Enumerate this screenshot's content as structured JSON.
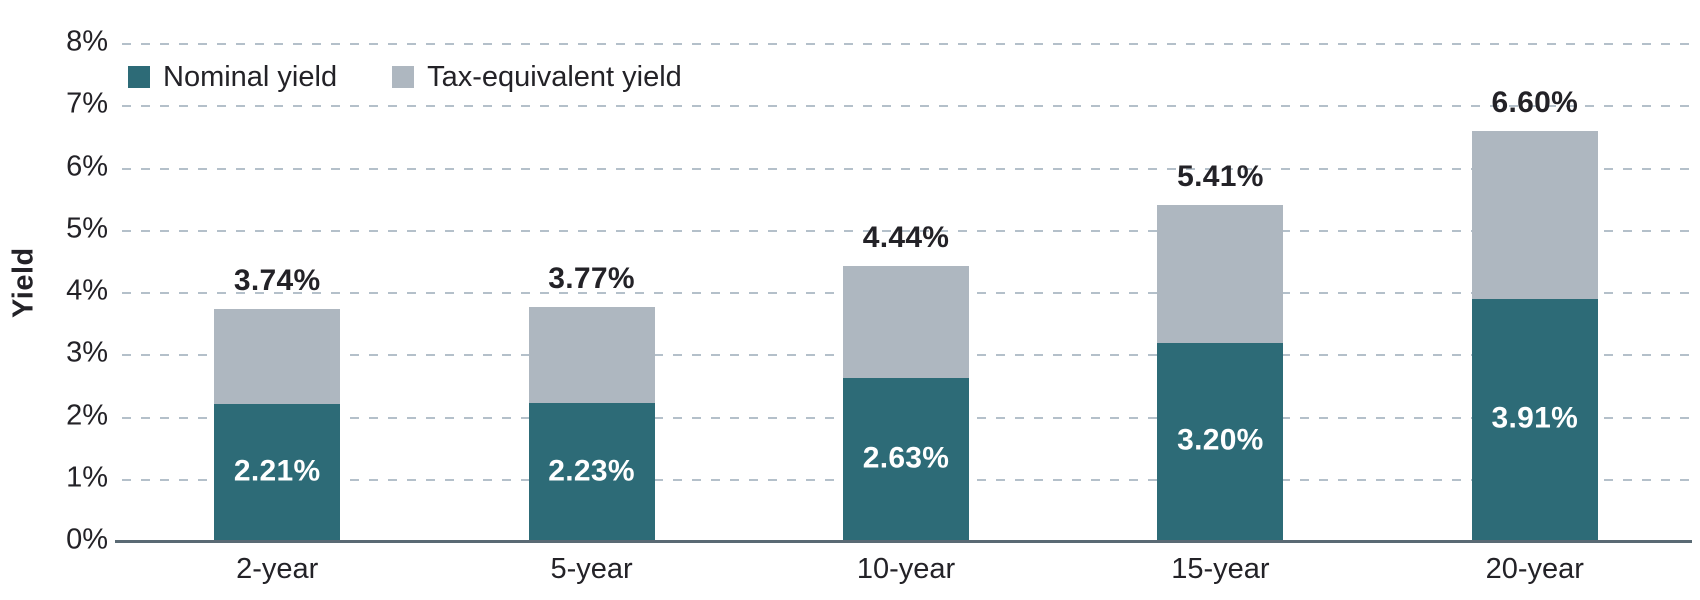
{
  "chart_data": {
    "type": "bar",
    "stacked": true,
    "title": "",
    "xlabel": "",
    "ylabel": "Yield",
    "ylim": [
      0,
      8
    ],
    "ytick_step": 1,
    "ytick_suffix": "%",
    "grid": "horizontal dashed",
    "legend_position": "top-left inside plot",
    "categories": [
      "2-year",
      "5-year",
      "10-year",
      "15-year",
      "20-year"
    ],
    "series": [
      {
        "name": "Nominal yield",
        "color": "#2d6b77",
        "values": [
          2.21,
          2.23,
          2.63,
          3.2,
          3.91
        ],
        "labels": [
          "2.21%",
          "2.23%",
          "2.63%",
          "3.20%",
          "3.91%"
        ]
      },
      {
        "name": "Tax-equivalent yield",
        "color": "#aeb7c0",
        "represents": "total bar height",
        "values": [
          3.74,
          3.77,
          4.44,
          5.41,
          6.6
        ],
        "labels": [
          "3.74%",
          "3.77%",
          "4.44%",
          "5.41%",
          "6.60%"
        ]
      }
    ],
    "colors": {
      "text": "#232227",
      "bar_label_text": "#ffffff",
      "gridline": "#b4c0ca",
      "axis_line": "#5a6a74",
      "background": "#ffffff"
    }
  }
}
